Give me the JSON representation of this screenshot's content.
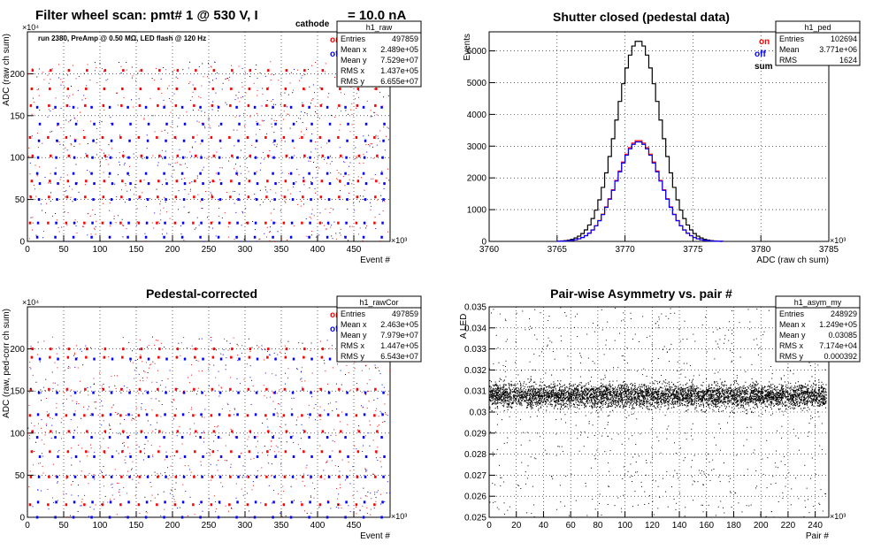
{
  "figure_title": {
    "main": "Filter wheel scan: pmt#   1 @    530 V, I",
    "subscript": "cathode",
    "tail": "= 10.0 nA",
    "run_note": "run 2380, PreAmp @ 0.50 MΩ, LED flash @  120 Hz"
  },
  "colors": {
    "on": "#ff0000",
    "off": "#0000ff",
    "sum": "#000000",
    "grid": "#000000"
  },
  "chart_data": [
    {
      "type": "scatter",
      "id": "raw",
      "title": "",
      "xlabel": "Event #",
      "ylabel": "ADC (raw ch sum)",
      "x_exponent": "×10³",
      "y_exponent": "×10⁴",
      "xlim": [
        0,
        500
      ],
      "ylim": [
        0,
        250
      ],
      "xticks": [
        0,
        50,
        100,
        150,
        200,
        250,
        300,
        350,
        400,
        450
      ],
      "yticks": [
        0,
        50,
        100,
        150,
        200
      ],
      "legend": [
        "on",
        "off"
      ],
      "stats": {
        "name": "h1_raw",
        "rows": [
          [
            "Entries",
            "497859"
          ],
          [
            "Mean x",
            "2.489e+05"
          ],
          [
            "Mean y",
            "7.529e+07"
          ],
          [
            "RMS x",
            "1.437e+05"
          ],
          [
            "RMS y",
            "6.655e+07"
          ]
        ]
      },
      "levels_on": [
        22,
        53,
        72,
        102,
        124,
        162,
        182,
        204
      ],
      "levels_off": [
        5,
        22,
        50,
        69,
        81,
        100,
        120,
        140,
        160
      ],
      "period": 25
    },
    {
      "type": "line",
      "id": "ped",
      "title": "Shutter closed (pedestal data)",
      "xlabel": "ADC (raw ch sum)",
      "ylabel": "Events",
      "x_exponent": "×10³",
      "xlim": [
        3760,
        3785
      ],
      "ylim": [
        0,
        6600
      ],
      "xticks": [
        3760,
        3765,
        3770,
        3775,
        3780,
        3785
      ],
      "yticks": [
        0,
        1000,
        2000,
        3000,
        4000,
        5000,
        6000
      ],
      "legend": [
        "on",
        "off",
        "sum"
      ],
      "stats": {
        "name": "h1_ped",
        "rows": [
          [
            "Entries",
            "102694"
          ],
          [
            "Mean",
            "3.771e+06"
          ],
          [
            "RMS",
            "1624"
          ]
        ]
      },
      "series": [
        {
          "name": "sum",
          "peak": 6320,
          "mean": 3771.0,
          "sigma": 1.62
        },
        {
          "name": "on",
          "peak": 3180,
          "mean": 3771.0,
          "sigma": 1.62
        },
        {
          "name": "off",
          "peak": 3140,
          "mean": 3771.0,
          "sigma": 1.62
        }
      ]
    },
    {
      "type": "scatter",
      "id": "rawcor",
      "title": "Pedestal-corrected",
      "xlabel": "Event #",
      "ylabel": "ADC (raw, ped-corr ch sum)",
      "x_exponent": "×10³",
      "y_exponent": "×10⁴",
      "xlim": [
        0,
        500
      ],
      "ylim": [
        0,
        250
      ],
      "xticks": [
        0,
        50,
        100,
        150,
        200,
        250,
        300,
        350,
        400,
        450
      ],
      "yticks": [
        0,
        50,
        100,
        150,
        200
      ],
      "legend": [
        "on",
        "off"
      ],
      "stats": {
        "name": "h1_rawCor",
        "rows": [
          [
            "Entries",
            "497859"
          ],
          [
            "Mean x",
            "2.463e+05"
          ],
          [
            "Mean y",
            "7.979e+07"
          ],
          [
            "RMS x",
            "1.447e+05"
          ],
          [
            "RMS y",
            "6.543e+07"
          ]
        ]
      },
      "levels_on": [
        15,
        48,
        78,
        102,
        121,
        152,
        190,
        200
      ],
      "levels_off": [
        0,
        18,
        48,
        72,
        95,
        122,
        148,
        188
      ],
      "period": 25
    },
    {
      "type": "scatter",
      "id": "asym",
      "title": "Pair-wise Asymmetry vs. pair #",
      "xlabel": "Pair #",
      "ylabel": "A_LED",
      "x_exponent": "×10³",
      "xlim": [
        0,
        250
      ],
      "ylim": [
        0.025,
        0.035
      ],
      "xticks": [
        0,
        20,
        40,
        60,
        80,
        100,
        120,
        140,
        160,
        180,
        200,
        220,
        240
      ],
      "yticks": [
        0.025,
        0.026,
        0.027,
        0.028,
        0.029,
        0.03,
        0.031,
        0.032,
        0.033,
        0.034,
        0.035
      ],
      "stats": {
        "name": "h1_asym_my",
        "rows": [
          [
            "Entries",
            "248929"
          ],
          [
            "Mean x",
            "1.249e+05"
          ],
          [
            "Mean y",
            "0.03085"
          ],
          [
            "RMS x",
            "7.174e+04"
          ],
          [
            "RMS y",
            "0.000392"
          ]
        ]
      },
      "band_center": 0.0308,
      "band_halfwidth": 0.0005
    }
  ]
}
